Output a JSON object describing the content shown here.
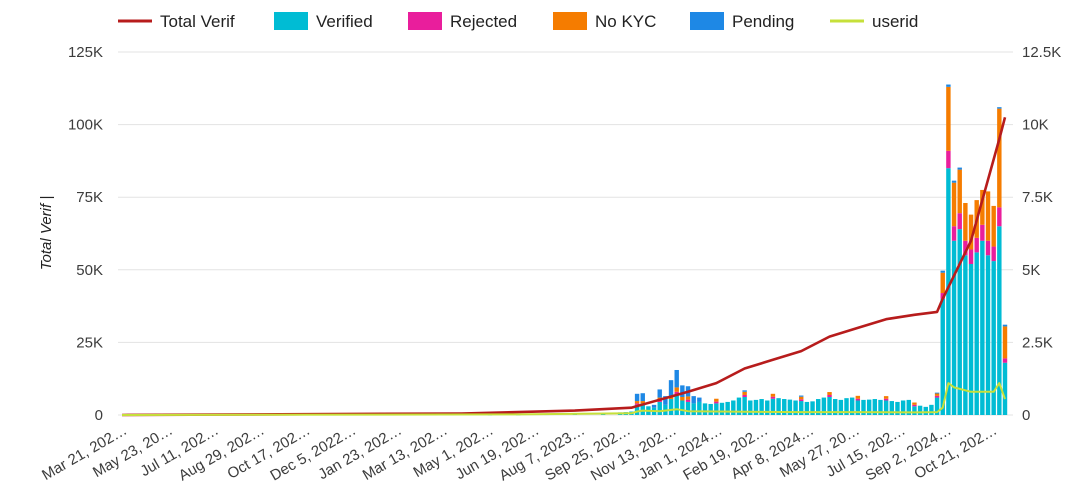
{
  "chart_data": {
    "type": "bar",
    "stacked": true,
    "title": "",
    "xlabel": "",
    "ylabel": "Total Verif |",
    "ylim": [
      0,
      125000
    ],
    "y2lim": [
      0,
      12500
    ],
    "y_ticks": [
      "0",
      "25K",
      "50K",
      "75K",
      "100K",
      "125K"
    ],
    "y2_ticks": [
      "0",
      "2.5K",
      "5K",
      "7.5K",
      "10K",
      "12.5K"
    ],
    "x_tick_labels": [
      "Mar 21, 202…",
      "May 23, 20…",
      "Jul 11, 202…",
      "Aug 29, 202…",
      "Oct 17, 202…",
      "Dec 5, 2022…",
      "Jan 23, 202…",
      "Mar 13, 202…",
      "May 1, 202…",
      "Jun 19, 202…",
      "Aug 7, 2023…",
      "Sep 25, 202…",
      "Nov 13, 202…",
      "Jan 1, 2024…",
      "Feb 19, 202…",
      "Apr 8, 2024…",
      "May 27, 20…",
      "Jul 15, 202…",
      "Sep 2, 2024…",
      "Oct 21, 202…"
    ],
    "legend": [
      "Total Verif",
      "Verified",
      "Rejected",
      "No KYC",
      "Pending",
      "userid"
    ],
    "colors": {
      "total_verif": "#b71c1c",
      "verified": "#00bcd4",
      "rejected": "#e91e9c",
      "no_kyc": "#f57c00",
      "pending": "#1e88e5",
      "userid": "#c6e03a"
    },
    "x_start": 0,
    "x_end": 150,
    "categories_count": 151,
    "series": [
      {
        "name": "Verified",
        "points": [
          [
            65,
            50
          ],
          [
            70,
            100
          ],
          [
            75,
            200
          ],
          [
            80,
            300
          ],
          [
            85,
            500
          ],
          [
            88,
            900
          ],
          [
            89,
            1000
          ],
          [
            90,
            1200
          ],
          [
            91,
            3500
          ],
          [
            92,
            4000
          ],
          [
            93,
            3000
          ],
          [
            94,
            2500
          ],
          [
            95,
            4500
          ],
          [
            96,
            3500
          ],
          [
            97,
            5500
          ],
          [
            98,
            7000
          ],
          [
            99,
            5000
          ],
          [
            100,
            4500
          ],
          [
            101,
            4000
          ],
          [
            102,
            4500
          ],
          [
            103,
            4000
          ],
          [
            104,
            3800
          ],
          [
            105,
            4000
          ],
          [
            106,
            4200
          ],
          [
            107,
            4500
          ],
          [
            108,
            5000
          ],
          [
            109,
            6000
          ],
          [
            110,
            6200
          ],
          [
            111,
            5000
          ],
          [
            112,
            5200
          ],
          [
            113,
            5500
          ],
          [
            114,
            5000
          ],
          [
            115,
            5600
          ],
          [
            116,
            5800
          ],
          [
            117,
            5500
          ],
          [
            118,
            5300
          ],
          [
            119,
            5000
          ],
          [
            120,
            4800
          ],
          [
            121,
            4500
          ],
          [
            122,
            4700
          ],
          [
            123,
            5500
          ],
          [
            124,
            6000
          ],
          [
            125,
            6200
          ],
          [
            126,
            5500
          ],
          [
            127,
            5200
          ],
          [
            128,
            5800
          ],
          [
            129,
            6000
          ],
          [
            130,
            5000
          ],
          [
            131,
            5200
          ],
          [
            132,
            5300
          ],
          [
            133,
            5500
          ],
          [
            134,
            5200
          ],
          [
            135,
            5000
          ],
          [
            136,
            4800
          ],
          [
            137,
            4500
          ],
          [
            138,
            5000
          ],
          [
            139,
            5200
          ],
          [
            140,
            3000
          ],
          [
            141,
            3200
          ],
          [
            142,
            2800
          ],
          [
            143,
            3500
          ],
          [
            144,
            6000
          ],
          [
            145,
            40000
          ],
          [
            146,
            85000
          ],
          [
            147,
            60000
          ],
          [
            148,
            64000
          ],
          [
            149,
            55000
          ],
          [
            150,
            52000
          ],
          [
            151,
            56000
          ],
          [
            152,
            60000
          ],
          [
            153,
            55000
          ],
          [
            154,
            53000
          ],
          [
            155,
            65000
          ],
          [
            156,
            18000
          ]
        ]
      },
      {
        "name": "Rejected",
        "points": [
          [
            91,
            500
          ],
          [
            95,
            600
          ],
          [
            98,
            1000
          ],
          [
            100,
            800
          ],
          [
            105,
            600
          ],
          [
            110,
            700
          ],
          [
            115,
            700
          ],
          [
            120,
            600
          ],
          [
            125,
            700
          ],
          [
            130,
            600
          ],
          [
            135,
            600
          ],
          [
            140,
            500
          ],
          [
            144,
            600
          ],
          [
            145,
            2000
          ],
          [
            146,
            6000
          ],
          [
            147,
            5000
          ],
          [
            148,
            5500
          ],
          [
            149,
            5000
          ],
          [
            150,
            5000
          ],
          [
            151,
            5000
          ],
          [
            152,
            5500
          ],
          [
            153,
            5000
          ],
          [
            154,
            5000
          ],
          [
            155,
            6500
          ],
          [
            156,
            1500
          ]
        ]
      },
      {
        "name": "No KYC",
        "points": [
          [
            91,
            800
          ],
          [
            92,
            800
          ],
          [
            95,
            900
          ],
          [
            97,
            1000
          ],
          [
            98,
            1500
          ],
          [
            99,
            1200
          ],
          [
            100,
            1100
          ],
          [
            105,
            1000
          ],
          [
            110,
            1100
          ],
          [
            115,
            1000
          ],
          [
            120,
            900
          ],
          [
            125,
            1000
          ],
          [
            130,
            1000
          ],
          [
            135,
            900
          ],
          [
            140,
            800
          ],
          [
            144,
            800
          ],
          [
            145,
            7000
          ],
          [
            146,
            22000
          ],
          [
            147,
            15000
          ],
          [
            148,
            15000
          ],
          [
            149,
            13000
          ],
          [
            150,
            12000
          ],
          [
            151,
            13000
          ],
          [
            152,
            12000
          ],
          [
            153,
            17000
          ],
          [
            154,
            14000
          ],
          [
            155,
            34000
          ],
          [
            156,
            11000
          ]
        ]
      },
      {
        "name": "Pending",
        "points": [
          [
            91,
            2500
          ],
          [
            92,
            2700
          ],
          [
            94,
            1000
          ],
          [
            95,
            2800
          ],
          [
            96,
            3000
          ],
          [
            97,
            5500
          ],
          [
            98,
            6000
          ],
          [
            99,
            4000
          ],
          [
            100,
            3500
          ],
          [
            101,
            2500
          ],
          [
            102,
            1500
          ],
          [
            110,
            500
          ],
          [
            120,
            400
          ],
          [
            144,
            300
          ],
          [
            145,
            700
          ],
          [
            146,
            800
          ],
          [
            147,
            700
          ],
          [
            148,
            700
          ],
          [
            155,
            500
          ],
          [
            156,
            600
          ]
        ]
      }
    ],
    "lines": [
      {
        "name": "Total Verif",
        "axis": "left",
        "points": [
          [
            0,
            0
          ],
          [
            60,
            500
          ],
          [
            80,
            1500
          ],
          [
            90,
            2500
          ],
          [
            100,
            8000
          ],
          [
            105,
            11000
          ],
          [
            110,
            16000
          ],
          [
            115,
            19000
          ],
          [
            120,
            22000
          ],
          [
            125,
            27000
          ],
          [
            130,
            30000
          ],
          [
            135,
            33000
          ],
          [
            140,
            34500
          ],
          [
            144,
            35500
          ],
          [
            145,
            40000
          ],
          [
            150,
            60000
          ],
          [
            155,
            95000
          ],
          [
            156,
            102500
          ]
        ]
      },
      {
        "name": "userid",
        "axis": "right",
        "points": [
          [
            0,
            0
          ],
          [
            70,
            20
          ],
          [
            90,
            60
          ],
          [
            91,
            120
          ],
          [
            92,
            150
          ],
          [
            95,
            130
          ],
          [
            98,
            200
          ],
          [
            100,
            130
          ],
          [
            110,
            110
          ],
          [
            120,
            100
          ],
          [
            130,
            100
          ],
          [
            140,
            90
          ],
          [
            144,
            100
          ],
          [
            145,
            250
          ],
          [
            146,
            1100
          ],
          [
            147,
            950
          ],
          [
            148,
            900
          ],
          [
            150,
            800
          ],
          [
            152,
            800
          ],
          [
            154,
            800
          ],
          [
            155,
            1100
          ],
          [
            156,
            550
          ]
        ]
      }
    ]
  }
}
